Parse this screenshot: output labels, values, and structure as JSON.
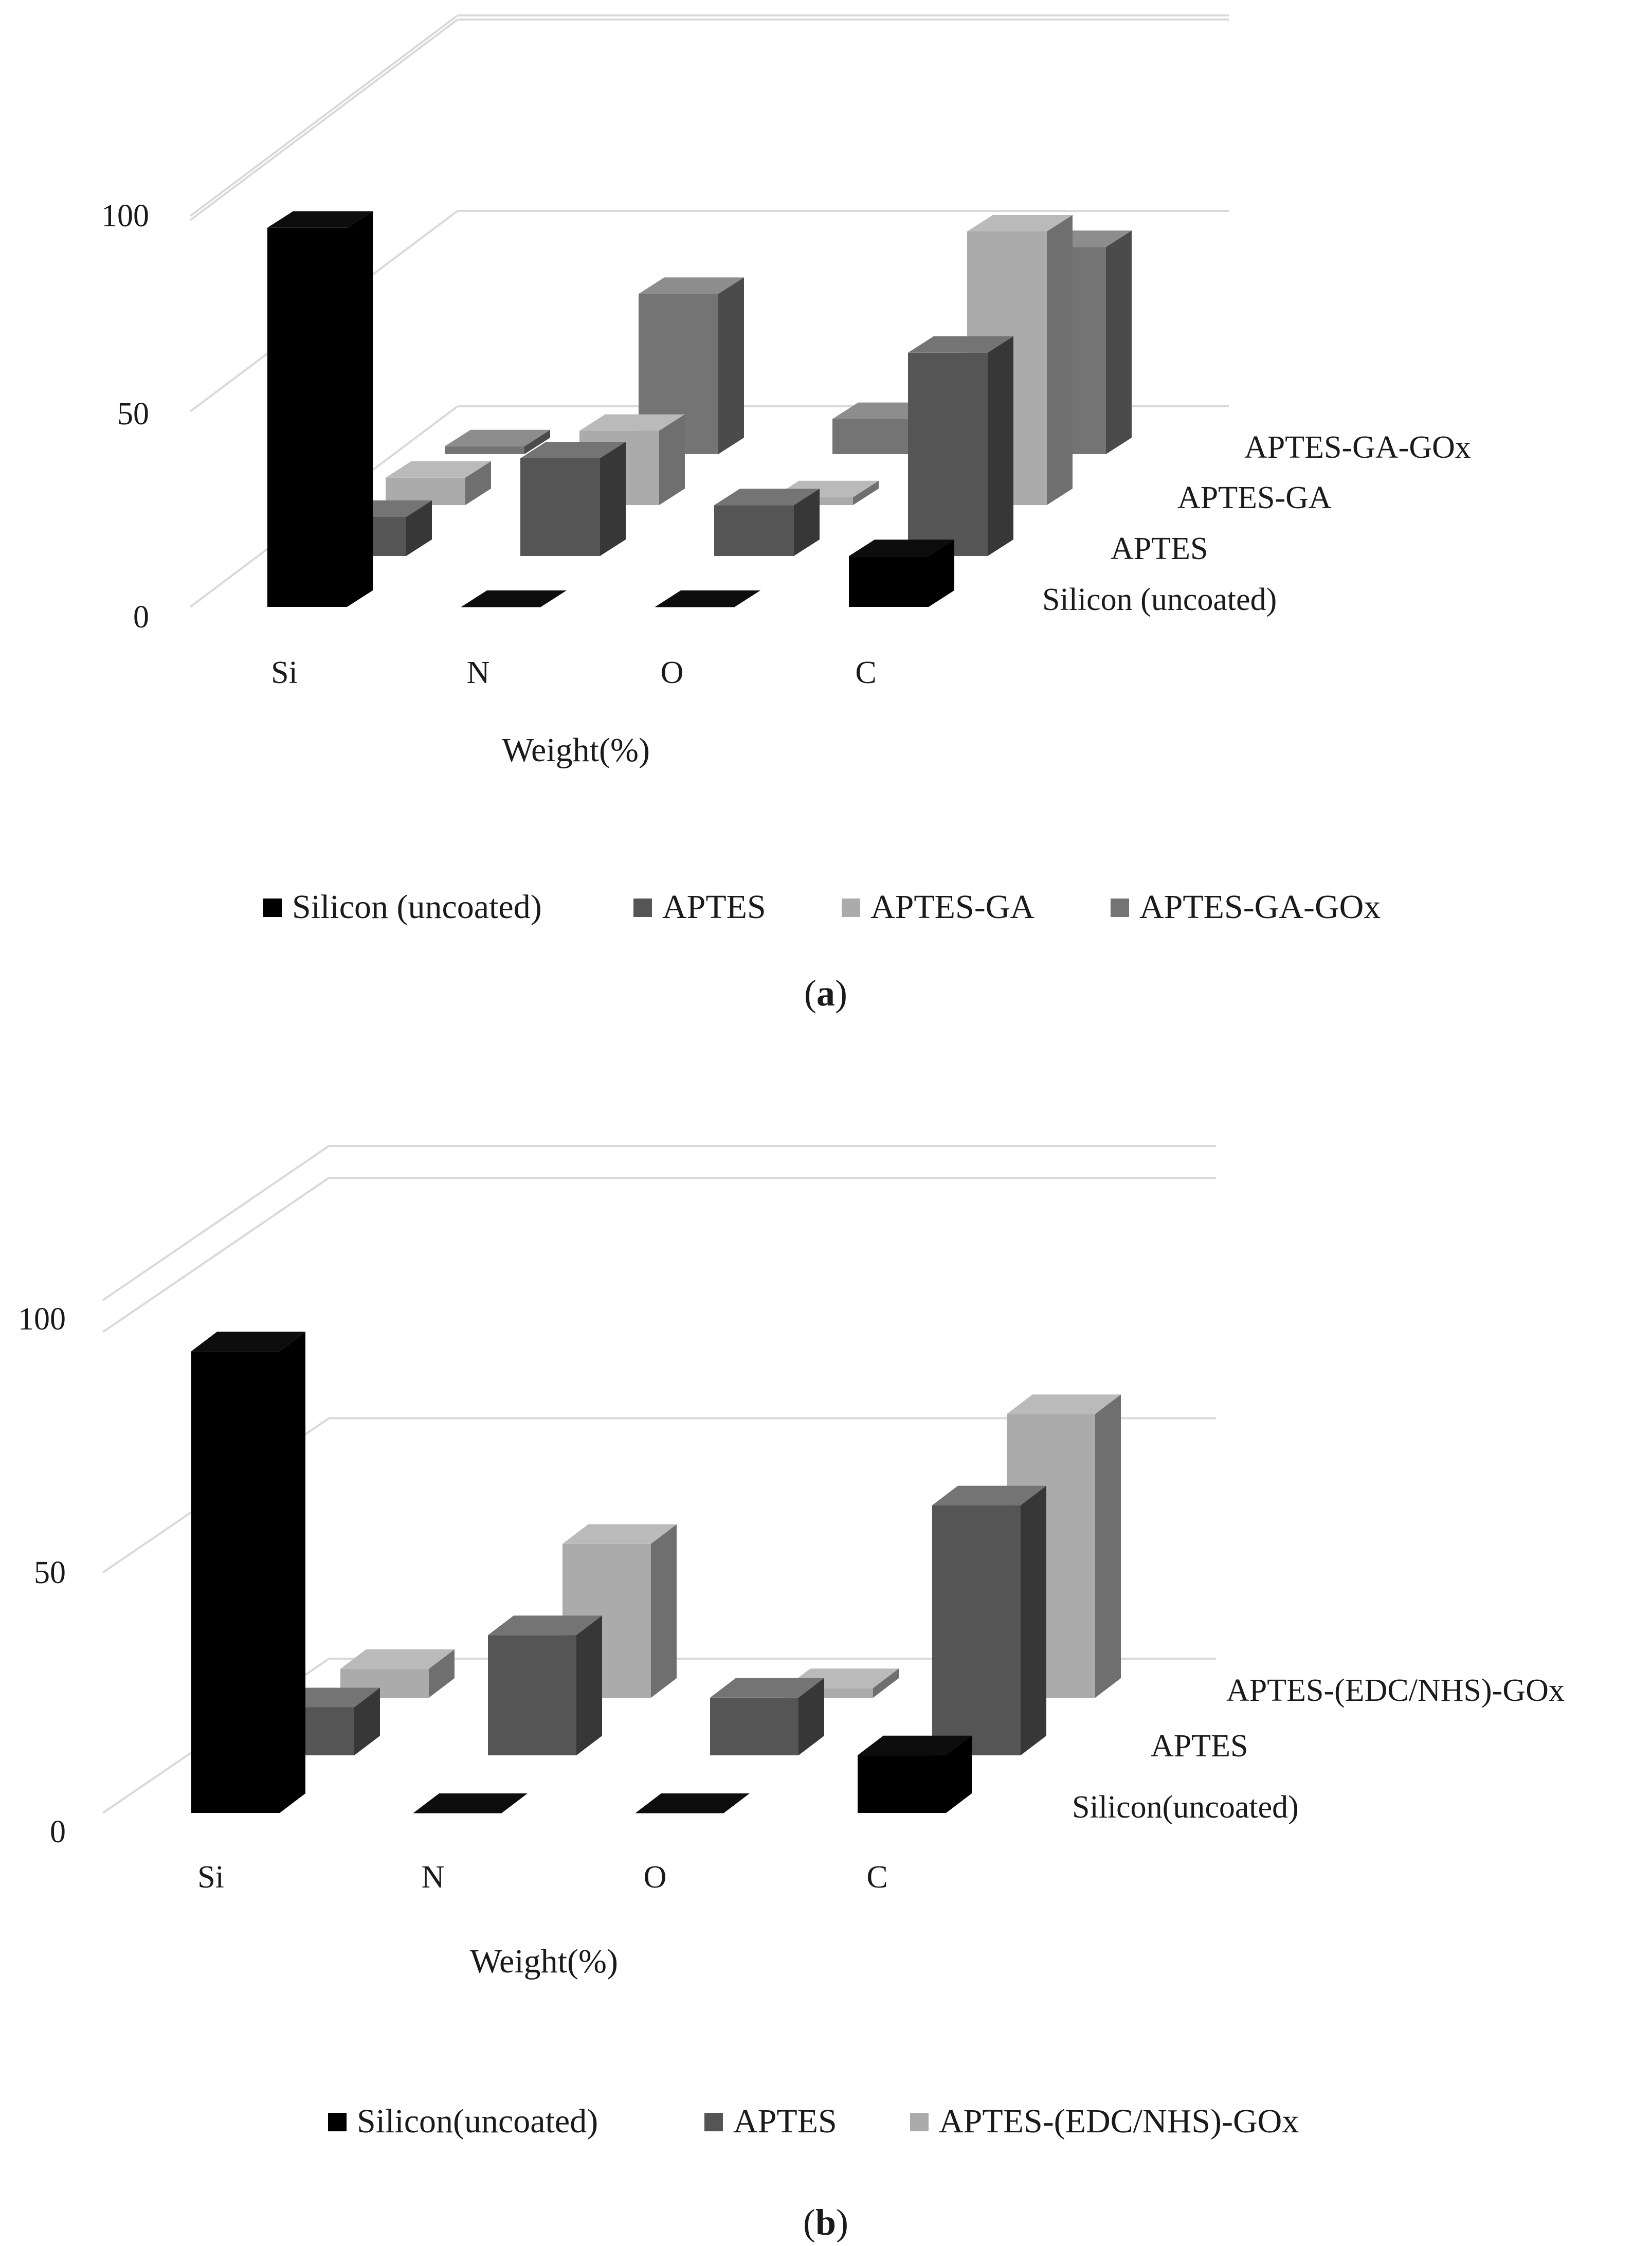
{
  "chart_data": [
    {
      "type": "bar",
      "variant": "3d-clustered",
      "caption": "a",
      "categories": [
        "Si",
        "N",
        "O",
        "C"
      ],
      "xlabel": "Weight(%)",
      "ylabel": "",
      "ylim": [
        0,
        100
      ],
      "yticks": [
        "0",
        "50",
        "100"
      ],
      "legend_position": "bottom",
      "series": [
        {
          "name": "Silicon (uncoated)",
          "color": "#000000",
          "values": [
            97,
            0,
            0,
            13
          ]
        },
        {
          "name": "APTES",
          "color": "#555555",
          "values": [
            10,
            25,
            13,
            52
          ]
        },
        {
          "name": "APTES-GA",
          "color": "#ababab",
          "values": [
            7,
            19,
            2,
            70
          ]
        },
        {
          "name": "APTES-GA-GOx",
          "color": "#747474",
          "values": [
            2,
            41,
            9,
            53
          ]
        }
      ]
    },
    {
      "type": "bar",
      "variant": "3d-clustered",
      "caption": "b",
      "categories": [
        "Si",
        "N",
        "O",
        "C"
      ],
      "xlabel": "Weight(%)",
      "ylabel": "",
      "ylim": [
        0,
        100
      ],
      "yticks": [
        "0",
        "50",
        "100"
      ],
      "legend_position": "bottom",
      "series": [
        {
          "name": "Silicon(uncoated)",
          "color": "#000000",
          "values": [
            96,
            0,
            0,
            12
          ]
        },
        {
          "name": "APTES",
          "color": "#555555",
          "values": [
            10,
            25,
            12,
            52
          ]
        },
        {
          "name": "APTES-(EDC/NHS)-GOx",
          "color": "#ababab",
          "values": [
            6,
            32,
            2,
            59
          ]
        }
      ]
    }
  ]
}
